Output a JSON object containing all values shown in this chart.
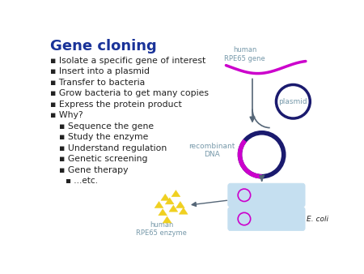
{
  "title": "Gene cloning",
  "title_color": "#1a3399",
  "title_fontsize": 13,
  "bg_color": "#ffffff",
  "bullet_color": "#222222",
  "bullet_items": [
    "Isolate a specific gene of interest",
    "Insert into a plasmid",
    "Transfer to bacteria",
    "Grow bacteria to get many copies",
    "Express the protein product",
    "Why?",
    "  Sequence the gene",
    "  Study the enzyme",
    "  Understand regulation",
    "  Genetic screening",
    "  Gene therapy",
    "    ...etc."
  ],
  "magenta": "#cc00cc",
  "dark_navy": "#1a1a6e",
  "light_blue": "#c5dff0",
  "yellow": "#f0d020",
  "gray_text": "#7799aa",
  "arrow_color": "#556677"
}
